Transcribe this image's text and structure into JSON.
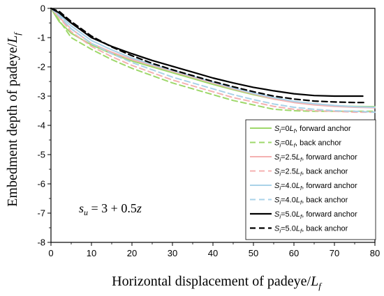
{
  "chart_data": {
    "type": "line",
    "title": "",
    "xlabel": {
      "main": "Horizontal displacement of padeye/",
      "var": "L",
      "sub": "f"
    },
    "ylabel": {
      "main": "Embedment depth of padeye/",
      "var": "L",
      "sub": "f"
    },
    "xlim": [
      0,
      80
    ],
    "ylim": [
      -8,
      0
    ],
    "xticks": [
      0,
      10,
      20,
      30,
      40,
      50,
      60,
      70,
      80
    ],
    "yticks": [
      0,
      -1,
      -2,
      -3,
      -4,
      -5,
      -6,
      -7,
      -8
    ],
    "grid": false,
    "legend_position": "bottom-right",
    "annotation": {
      "var": "s",
      "sub": "u",
      "rest": " = 3 + 0.5",
      "z": "z"
    },
    "series": [
      {
        "name": {
          "pre": "S",
          "sub": "i",
          "mid": "=0",
          "unit": "L",
          "unit_sub": "f",
          "post": ", forward anchor"
        },
        "color": "#9ed86a",
        "dash": "solid",
        "width": 2,
        "x": [
          0,
          2,
          5,
          10,
          15,
          20,
          25,
          30,
          35,
          40,
          45,
          50,
          55,
          60,
          65,
          70,
          75,
          80
        ],
        "y": [
          0,
          -0.45,
          -0.85,
          -1.25,
          -1.55,
          -1.8,
          -2.0,
          -2.2,
          -2.4,
          -2.6,
          -2.78,
          -2.95,
          -3.1,
          -3.2,
          -3.28,
          -3.33,
          -3.35,
          -3.36
        ]
      },
      {
        "name": {
          "pre": "S",
          "sub": "i",
          "mid": "=0",
          "unit": "L",
          "unit_sub": "f",
          "post": ", back anchor"
        },
        "color": "#9ed86a",
        "dash": "dashed",
        "width": 2,
        "x": [
          0,
          2,
          5,
          10,
          15,
          20,
          25,
          30,
          35,
          40,
          45,
          50,
          55,
          60,
          65,
          70,
          75,
          80
        ],
        "y": [
          0,
          -0.4,
          -1.0,
          -1.4,
          -1.75,
          -2.05,
          -2.3,
          -2.55,
          -2.75,
          -2.95,
          -3.15,
          -3.3,
          -3.45,
          -3.5,
          -3.52,
          -3.52,
          -3.52,
          -3.52
        ]
      },
      {
        "name": {
          "pre": "S",
          "sub": "i",
          "mid": "=2.5",
          "unit": "L",
          "unit_sub": "f",
          "post": ", forward anchor"
        },
        "color": "#f4b1b1",
        "dash": "solid",
        "width": 2,
        "x": [
          0,
          2,
          5,
          10,
          15,
          20,
          25,
          30,
          35,
          40,
          45,
          50,
          55,
          60,
          65,
          70,
          75,
          80
        ],
        "y": [
          0,
          -0.3,
          -0.7,
          -1.2,
          -1.5,
          -1.75,
          -1.95,
          -2.15,
          -2.35,
          -2.55,
          -2.75,
          -2.92,
          -3.1,
          -3.22,
          -3.3,
          -3.35,
          -3.38,
          -3.4
        ]
      },
      {
        "name": {
          "pre": "S",
          "sub": "i",
          "mid": "=2.5",
          "unit": "L",
          "unit_sub": "f",
          "post": ", back anchor"
        },
        "color": "#f4b1b1",
        "dash": "dashed",
        "width": 2,
        "x": [
          0,
          2,
          5,
          10,
          15,
          20,
          25,
          30,
          35,
          40,
          45,
          50,
          55,
          60,
          65,
          70,
          75,
          80
        ],
        "y": [
          0,
          -0.3,
          -0.8,
          -1.3,
          -1.65,
          -1.95,
          -2.2,
          -2.45,
          -2.65,
          -2.85,
          -3.05,
          -3.2,
          -3.35,
          -3.45,
          -3.5,
          -3.52,
          -3.55,
          -3.55
        ]
      },
      {
        "name": {
          "pre": "S",
          "sub": "i",
          "mid": "=4.0",
          "unit": "L",
          "unit_sub": "f",
          "post": ", forward anchor"
        },
        "color": "#a9d2e8",
        "dash": "solid",
        "width": 2,
        "x": [
          0,
          2,
          5,
          10,
          15,
          20,
          25,
          30,
          35,
          40,
          45,
          50,
          55,
          60,
          65,
          70,
          75,
          80
        ],
        "y": [
          0,
          -0.2,
          -0.6,
          -1.1,
          -1.42,
          -1.7,
          -1.92,
          -2.12,
          -2.32,
          -2.52,
          -2.72,
          -2.9,
          -3.05,
          -3.18,
          -3.26,
          -3.32,
          -3.36,
          -3.38
        ]
      },
      {
        "name": {
          "pre": "S",
          "sub": "i",
          "mid": "=4.0",
          "unit": "L",
          "unit_sub": "f",
          "post": ", back anchor"
        },
        "color": "#a9d2e8",
        "dash": "dashed",
        "width": 2,
        "x": [
          0,
          2,
          5,
          10,
          15,
          20,
          25,
          30,
          35,
          40,
          45,
          50,
          55,
          60,
          65,
          70,
          75,
          80
        ],
        "y": [
          0,
          -0.25,
          -0.7,
          -1.2,
          -1.55,
          -1.85,
          -2.1,
          -2.35,
          -2.55,
          -2.75,
          -2.95,
          -3.12,
          -3.27,
          -3.38,
          -3.45,
          -3.5,
          -3.52,
          -3.55
        ]
      },
      {
        "name": {
          "pre": "S",
          "sub": "i",
          "mid": "=5.0",
          "unit": "L",
          "unit_sub": "f",
          "post": ", forward anchor"
        },
        "color": "#000000",
        "dash": "solid",
        "width": 2.2,
        "x": [
          0,
          2,
          5,
          10,
          15,
          20,
          25,
          30,
          35,
          40,
          45,
          50,
          55,
          60,
          65,
          70,
          75,
          77
        ],
        "y": [
          0,
          -0.15,
          -0.5,
          -1.0,
          -1.3,
          -1.55,
          -1.78,
          -1.98,
          -2.18,
          -2.38,
          -2.55,
          -2.7,
          -2.82,
          -2.92,
          -2.98,
          -3.0,
          -3.0,
          -3.0
        ]
      },
      {
        "name": {
          "pre": "S",
          "sub": "i",
          "mid": "=5.0",
          "unit": "L",
          "unit_sub": "f",
          "post": ", back anchor"
        },
        "color": "#000000",
        "dash": "dashed",
        "width": 2.2,
        "x": [
          0,
          2,
          5,
          10,
          15,
          20,
          25,
          30,
          35,
          40,
          45,
          50,
          55,
          60,
          65,
          70,
          75,
          78
        ],
        "y": [
          0,
          -0.1,
          -0.45,
          -0.95,
          -1.32,
          -1.62,
          -1.88,
          -2.1,
          -2.3,
          -2.5,
          -2.68,
          -2.85,
          -3.0,
          -3.1,
          -3.17,
          -3.2,
          -3.22,
          -3.22
        ]
      }
    ]
  }
}
